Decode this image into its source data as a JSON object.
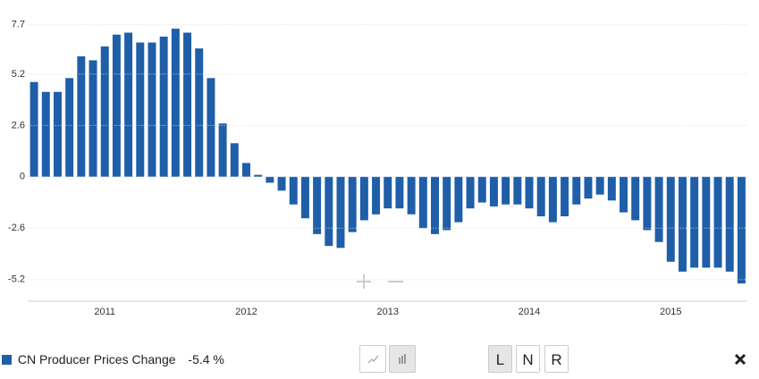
{
  "chart_data": {
    "type": "bar",
    "categories": [
      null,
      null,
      null,
      null,
      null,
      null,
      "2011",
      null,
      null,
      null,
      null,
      null,
      null,
      null,
      null,
      null,
      null,
      null,
      "2012",
      null,
      null,
      null,
      null,
      null,
      null,
      null,
      null,
      null,
      null,
      null,
      "2013",
      null,
      null,
      null,
      null,
      null,
      null,
      null,
      null,
      null,
      null,
      null,
      "2014",
      null,
      null,
      null,
      null,
      null,
      null,
      null,
      null,
      null,
      null,
      null,
      "2015",
      null,
      null,
      null,
      null,
      null,
      null
    ],
    "series": [
      {
        "name": "CN Producer Prices Change",
        "color": "#1f5ea8",
        "values": [
          4.8,
          4.3,
          4.3,
          5.0,
          6.1,
          5.9,
          6.6,
          7.2,
          7.3,
          6.8,
          6.8,
          7.1,
          7.5,
          7.3,
          6.5,
          5.0,
          2.7,
          1.7,
          0.7,
          0.1,
          -0.3,
          -0.7,
          -1.4,
          -2.1,
          -2.9,
          -3.5,
          -3.6,
          -2.8,
          -2.2,
          -1.9,
          -1.6,
          -1.6,
          -1.9,
          -2.6,
          -2.9,
          -2.7,
          -2.3,
          -1.6,
          -1.3,
          -1.5,
          -1.4,
          -1.4,
          -1.6,
          -2.0,
          -2.3,
          -2.0,
          -1.4,
          -1.1,
          -0.9,
          -1.2,
          -1.8,
          -2.2,
          -2.7,
          -3.3,
          -4.3,
          -4.8,
          -4.6,
          -4.6,
          -4.6,
          -4.8,
          -5.4
        ]
      }
    ],
    "latest_label": "-5.4 %",
    "ylim": [
      -6.3,
      8.5
    ],
    "yticks": [
      7.7,
      5.2,
      2.6,
      0,
      -2.6,
      -5.2
    ],
    "grid": true,
    "buttons": [
      "L",
      "N",
      "R"
    ]
  }
}
